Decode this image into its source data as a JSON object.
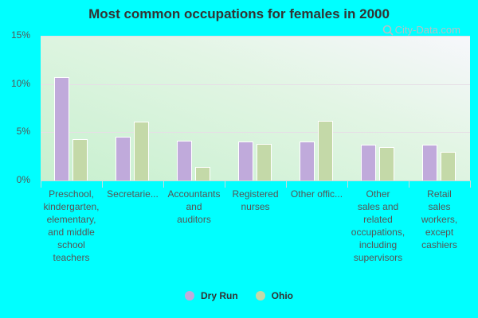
{
  "title": "Most common occupations for females in 2000",
  "watermark": "City-Data.com",
  "colors": {
    "dry_run": "#c0aadb",
    "ohio": "#c4d9a8",
    "background": "#00ffff"
  },
  "legend": [
    {
      "label": "Dry Run",
      "color": "#c0aadb"
    },
    {
      "label": "Ohio",
      "color": "#c4d9a8"
    }
  ],
  "y_ticks": [
    "0%",
    "5%",
    "10%",
    "15%"
  ],
  "chart_data": {
    "type": "bar",
    "title": "Most common occupations for females in 2000",
    "xlabel": "",
    "ylabel": "",
    "ylim": [
      0,
      15
    ],
    "y_ticks": [
      0,
      5,
      10,
      15
    ],
    "y_tick_format": "percent",
    "grid": true,
    "legend_position": "bottom",
    "categories": [
      "Preschool, kindergarten, elementary, and middle school teachers",
      "Secretarie...",
      "Accountants and auditors",
      "Registered nurses",
      "Other offic...",
      "Other sales and related occupations, including supervisors",
      "Retail sales workers, except cashiers"
    ],
    "series": [
      {
        "name": "Dry Run",
        "values": [
          10.7,
          4.5,
          4.1,
          4.0,
          4.0,
          3.7,
          3.7
        ]
      },
      {
        "name": "Ohio",
        "values": [
          4.3,
          6.1,
          1.4,
          3.8,
          6.2,
          3.5,
          3.0
        ]
      }
    ]
  },
  "x_labels": [
    "Preschool,\nkindergarten,\nelementary,\nand middle\nschool\nteachers",
    "Secretarie...",
    "Accountants\nand\nauditors",
    "Registered\nnurses",
    "Other offic...",
    "Other\nsales and\nrelated\noccupations,\nincluding\nsupervisors",
    "Retail\nsales\nworkers,\nexcept\ncashiers"
  ]
}
